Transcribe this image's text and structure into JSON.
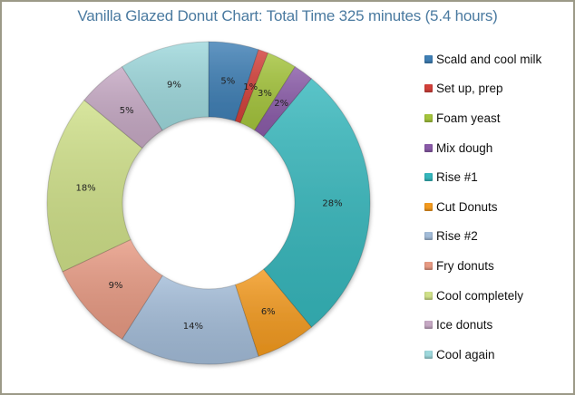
{
  "chart_data": {
    "type": "pie",
    "variant": "doughnut",
    "title": "Vanilla Glazed Donut Chart: Total Time 325 minutes (5.4 hours)",
    "total_minutes": 325,
    "total_hours": 5.4,
    "categories": [
      "Scald and cool milk",
      "Set up, prep",
      "Foam yeast",
      "Mix dough",
      "Rise #1",
      "Cut Donuts",
      "Rise #2",
      "Fry donuts",
      "Cool completely",
      "Ice donuts",
      "Cool again"
    ],
    "values": [
      5,
      1,
      3,
      2,
      28,
      6,
      14,
      9,
      18,
      5,
      9
    ],
    "value_labels": [
      "5%",
      "1%",
      "3%",
      "2%",
      "28%",
      "6%",
      "14%",
      "9%",
      "18%",
      "5%",
      "9%"
    ],
    "colors": [
      "#3f7fb5",
      "#d2403a",
      "#a4c43c",
      "#8a5ba8",
      "#36b7bc",
      "#f39a1f",
      "#a3bcd8",
      "#e79a83",
      "#cfe089",
      "#c6a9c4",
      "#9ed8dc"
    ],
    "legend_position": "right"
  },
  "legend": {
    "items": [
      {
        "label": "Scald and cool milk",
        "color": "#3f7fb5"
      },
      {
        "label": "Set up, prep",
        "color": "#d2403a"
      },
      {
        "label": "Foam yeast",
        "color": "#a4c43c"
      },
      {
        "label": "Mix dough",
        "color": "#8a5ba8"
      },
      {
        "label": "Rise #1",
        "color": "#36b7bc"
      },
      {
        "label": "Cut Donuts",
        "color": "#f39a1f"
      },
      {
        "label": "Rise #2",
        "color": "#a3bcd8"
      },
      {
        "label": "Fry donuts",
        "color": "#e79a83"
      },
      {
        "label": "Cool completely",
        "color": "#cfe089"
      },
      {
        "label": "Ice donuts",
        "color": "#c6a9c4"
      },
      {
        "label": "Cool again",
        "color": "#9ed8dc"
      }
    ]
  }
}
